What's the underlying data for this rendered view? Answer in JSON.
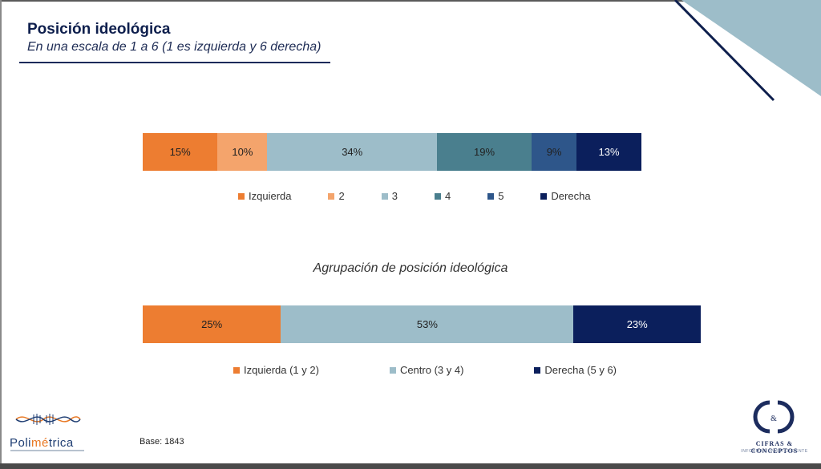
{
  "header": {
    "title": "Posición ideológica",
    "subtitle": "En una escala de 1 a 6  (1 es izquierda y 6 derecha)"
  },
  "chart_data": [
    {
      "type": "bar",
      "orientation": "horizontal-stacked-100",
      "title": "",
      "series": [
        {
          "name": "Izquierda",
          "value": 15,
          "label": "15%",
          "color": "#ed7d31"
        },
        {
          "name": "2",
          "value": 10,
          "label": "10%",
          "color": "#f4a46c"
        },
        {
          "name": "3",
          "value": 34,
          "label": "34%",
          "color": "#9dbdc9"
        },
        {
          "name": "4",
          "value": 19,
          "label": "19%",
          "color": "#4a7f8e"
        },
        {
          "name": "5",
          "value": 9,
          "label": "9%",
          "color": "#2e568a"
        },
        {
          "name": "Derecha",
          "value": 13,
          "label": "13%",
          "color": "#0b1f5c"
        }
      ],
      "legend_position": "bottom"
    },
    {
      "type": "bar",
      "orientation": "horizontal-stacked-100",
      "title": "Agrupación de posición ideológica",
      "series": [
        {
          "name": "Izquierda (1 y 2)",
          "value": 25,
          "label": "25%",
          "color": "#ed7d31"
        },
        {
          "name": "Centro (3 y 4)",
          "value": 53,
          "label": "53%",
          "color": "#9dbdc9"
        },
        {
          "name": "Derecha (5 y 6)",
          "value": 23,
          "label": "23%",
          "color": "#0b1f5c"
        }
      ],
      "legend_position": "bottom"
    }
  ],
  "footer": {
    "base": "Base: 1843",
    "logo_left": {
      "prefix": "Poli",
      "accent": "mé",
      "suffix": "trica"
    },
    "logo_right": {
      "name": "CIFRAS & CONCEPTOS",
      "tagline": "INFORMACIÓN INTELIGENTE"
    }
  }
}
